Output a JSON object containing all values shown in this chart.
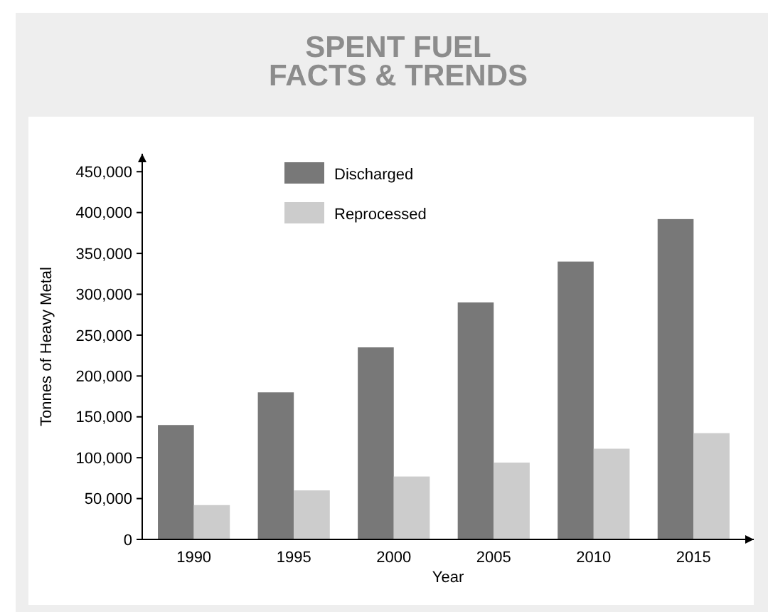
{
  "chart_data": {
    "type": "bar",
    "title": "SPENT FUEL\nFACTS & TRENDS",
    "xlabel": "Year",
    "ylabel": "Tonnes of Heavy Metal",
    "categories": [
      "1990",
      "1995",
      "2000",
      "2005",
      "2010",
      "2015"
    ],
    "series": [
      {
        "name": "Discharged",
        "color": "#787878",
        "values": [
          140000,
          180000,
          235000,
          290000,
          340000,
          392000
        ]
      },
      {
        "name": "Reprocessed",
        "color": "#cccccc",
        "values": [
          42000,
          60000,
          77000,
          94000,
          111000,
          130000
        ]
      }
    ],
    "ylim": [
      0,
      472000
    ],
    "yticks": [
      0,
      {
        "value": 50000,
        "label": "50,000"
      },
      {
        "value": 100000,
        "label": "100,000"
      },
      {
        "value": 150000,
        "label": "150,000"
      },
      {
        "value": 200000,
        "label": "200,000"
      },
      {
        "value": 250000,
        "label": "250,000"
      },
      {
        "value": 300000,
        "label": "300,000"
      },
      {
        "value": 350000,
        "label": "350,000"
      },
      {
        "value": 400000,
        "label": "400,000"
      },
      {
        "value": 450000,
        "label": "450,000"
      }
    ],
    "grid": false,
    "legend": "top"
  }
}
